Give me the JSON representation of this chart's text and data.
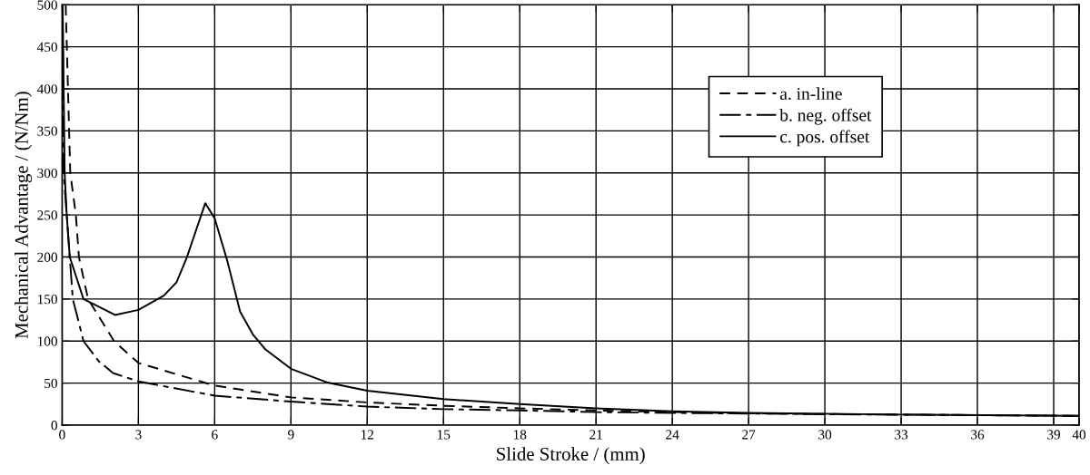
{
  "chart_data": {
    "type": "line",
    "xlabel": "Slide Stroke / (mm)",
    "ylabel": "Mechanical Advantage / (N/Nm)",
    "xlim": [
      0,
      40
    ],
    "ylim": [
      0,
      500
    ],
    "xticks": [
      0,
      3,
      6,
      9,
      12,
      15,
      18,
      21,
      24,
      27,
      30,
      33,
      36,
      39,
      40
    ],
    "yticks": [
      0,
      50,
      100,
      150,
      200,
      250,
      300,
      350,
      400,
      450,
      500
    ],
    "grid": true,
    "legend": "top right",
    "marker": "none",
    "series": [
      {
        "name": "a. in-line",
        "color": "#000000",
        "line_style": "dashed",
        "x": [
          0.14,
          0.32,
          0.54,
          0.66,
          1.02,
          2.04,
          3,
          6,
          9,
          12,
          15,
          18,
          21,
          24,
          27,
          33,
          40
        ],
        "values": [
          500,
          300,
          250,
          200,
          150,
          100,
          74,
          47,
          33,
          27,
          23,
          20,
          17.5,
          15.5,
          14,
          12.5,
          11
        ]
      },
      {
        "name": "b. neg. offset",
        "color": "#000000",
        "line_style": "dashdot",
        "x": [
          0.02,
          0.06,
          0.3,
          0.42,
          0.84,
          1.44,
          2,
          3,
          6,
          9,
          12,
          15,
          18,
          21,
          24,
          30,
          40
        ],
        "values": [
          500,
          300,
          200,
          150,
          100,
          76,
          62,
          52,
          35,
          28,
          22,
          19,
          17.5,
          15.5,
          14.5,
          13,
          11
        ]
      },
      {
        "name": "c. pos. offset",
        "color": "#000000",
        "line_style": "solid",
        "x": [
          0.02,
          0.1,
          0.18,
          0.3,
          0.84,
          2.08,
          3,
          4,
          4.5,
          4.9,
          5.63,
          6,
          6.5,
          7,
          7.5,
          8,
          9,
          10.4,
          12,
          15,
          18,
          21,
          24,
          27,
          33,
          40
        ],
        "values": [
          500,
          300,
          250,
          200,
          150,
          131,
          137,
          154,
          170,
          199,
          264,
          246,
          195,
          135,
          108,
          90,
          67,
          51,
          41,
          31,
          25,
          20,
          16.5,
          14.5,
          12.5,
          11
        ]
      }
    ]
  }
}
